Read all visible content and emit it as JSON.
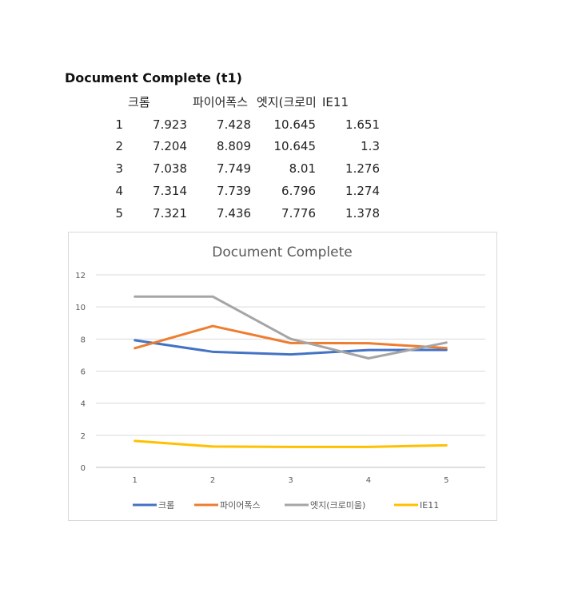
{
  "heading": "Document Complete (t1)",
  "table": {
    "columns": [
      "크롬",
      "파이어폭스",
      "엣지(크로미",
      "IE11"
    ],
    "rows": [
      {
        "label": "1",
        "values": [
          "7.923",
          "7.428",
          "10.645",
          "1.651"
        ]
      },
      {
        "label": "2",
        "values": [
          "7.204",
          "8.809",
          "10.645",
          "1.3"
        ]
      },
      {
        "label": "3",
        "values": [
          "7.038",
          "7.749",
          "8.01",
          "1.276"
        ]
      },
      {
        "label": "4",
        "values": [
          "7.314",
          "7.739",
          "6.796",
          "1.274"
        ]
      },
      {
        "label": "5",
        "values": [
          "7.321",
          "7.436",
          "7.776",
          "1.378"
        ]
      }
    ]
  },
  "chart_data": {
    "type": "line",
    "title": "Document Complete",
    "xlabel": "",
    "ylabel": "",
    "categories": [
      "1",
      "2",
      "3",
      "4",
      "5"
    ],
    "ylim": [
      0,
      12
    ],
    "yticks": [
      "0",
      "2",
      "4",
      "6",
      "8",
      "10",
      "12"
    ],
    "grid": true,
    "legend_position": "bottom",
    "series": [
      {
        "name": "크롬",
        "color": "#4472c4",
        "values": [
          7.923,
          7.204,
          7.038,
          7.314,
          7.321
        ]
      },
      {
        "name": "파이어폭스",
        "color": "#ed7d31",
        "values": [
          7.428,
          8.809,
          7.749,
          7.739,
          7.436
        ]
      },
      {
        "name": "엣지(크로미움)",
        "color": "#a5a5a5",
        "values": [
          10.645,
          10.645,
          8.01,
          6.796,
          7.776
        ]
      },
      {
        "name": "IE11",
        "color": "#ffc000",
        "values": [
          1.651,
          1.3,
          1.276,
          1.274,
          1.378
        ]
      }
    ]
  }
}
